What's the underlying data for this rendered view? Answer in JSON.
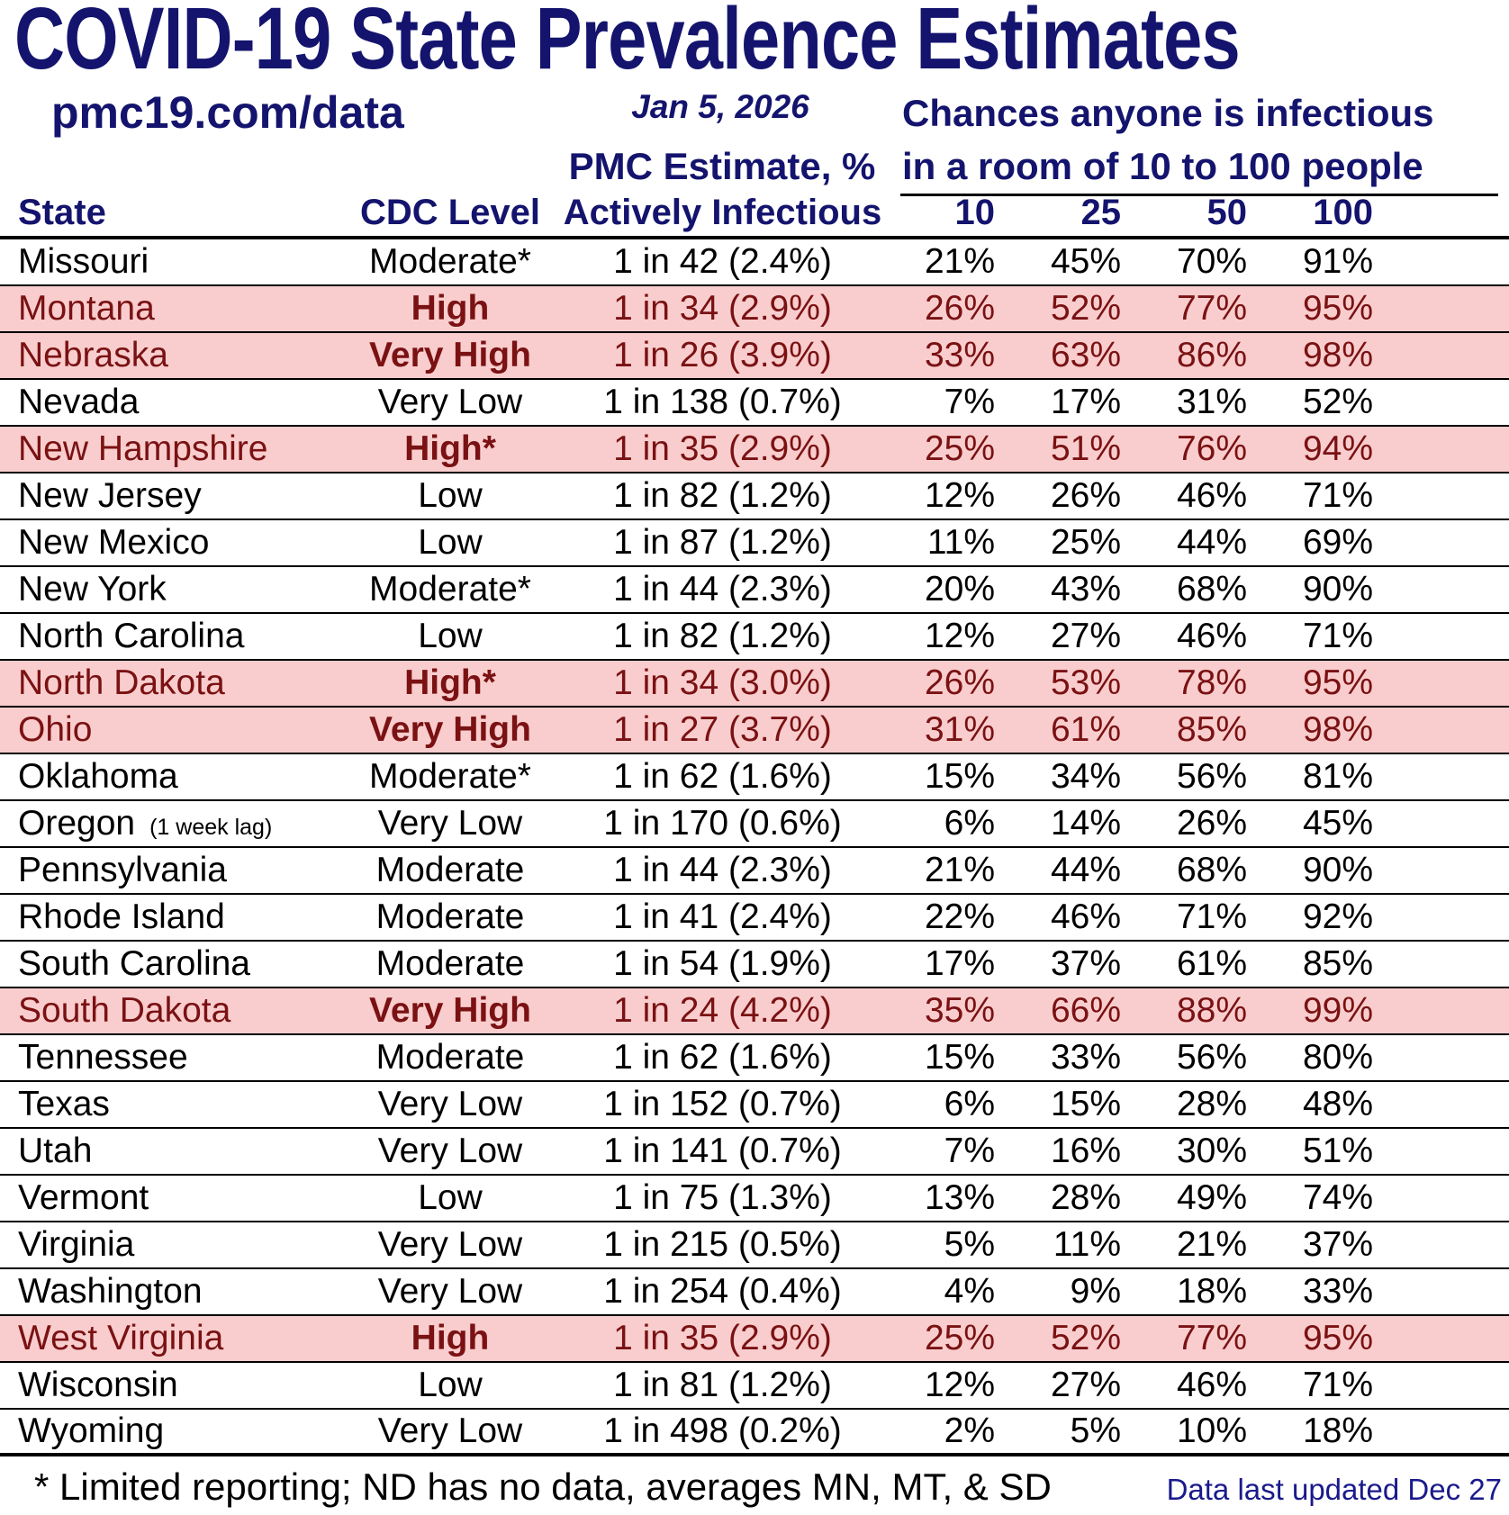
{
  "page": {
    "title": "COVID-19 State Prevalence Estimates",
    "site": "pmc19.com/data",
    "date": "Jan 5, 2026",
    "room_header_line1": "Chances anyone is infectious",
    "room_header_line2": "in a room of 10 to 100 people",
    "pmc_header_line1": "PMC Estimate, %",
    "pmc_header_line2": "Actively Infectious",
    "footnote": "* Limited reporting; ND has no data, averages MN, MT, & SD",
    "last_updated": "Data last updated Dec 27"
  },
  "columns": {
    "state": "State",
    "cdc_level": "CDC Level",
    "room_sizes": [
      "10",
      "25",
      "50",
      "100"
    ]
  },
  "colors": {
    "navy": "#14146e",
    "maroon": "#7a1113",
    "highlight_pink": "#f9cdcd",
    "updated_blue": "#1a1a8c",
    "row_line_black": "#000000"
  },
  "chart_data": {
    "type": "table",
    "title": "COVID-19 State Prevalence Estimates",
    "columns": [
      "State",
      "CDC Level",
      "PMC Estimate, % Actively Infectious",
      "10",
      "25",
      "50",
      "100"
    ],
    "rows": [
      {
        "state": "Missouri",
        "note": "",
        "cdc": "Moderate*",
        "estimate": "1 in 42 (2.4%)",
        "p10": "21%",
        "p25": "45%",
        "p50": "70%",
        "p100": "91%",
        "highlight": false
      },
      {
        "state": "Montana",
        "note": "",
        "cdc": "High",
        "estimate": "1 in 34 (2.9%)",
        "p10": "26%",
        "p25": "52%",
        "p50": "77%",
        "p100": "95%",
        "highlight": true
      },
      {
        "state": "Nebraska",
        "note": "",
        "cdc": "Very High",
        "estimate": "1 in 26 (3.9%)",
        "p10": "33%",
        "p25": "63%",
        "p50": "86%",
        "p100": "98%",
        "highlight": true
      },
      {
        "state": "Nevada",
        "note": "",
        "cdc": "Very Low",
        "estimate": "1 in 138 (0.7%)",
        "p10": "7%",
        "p25": "17%",
        "p50": "31%",
        "p100": "52%",
        "highlight": false
      },
      {
        "state": "New Hampshire",
        "note": "",
        "cdc": "High*",
        "estimate": "1 in 35 (2.9%)",
        "p10": "25%",
        "p25": "51%",
        "p50": "76%",
        "p100": "94%",
        "highlight": true
      },
      {
        "state": "New Jersey",
        "note": "",
        "cdc": "Low",
        "estimate": "1 in 82 (1.2%)",
        "p10": "12%",
        "p25": "26%",
        "p50": "46%",
        "p100": "71%",
        "highlight": false
      },
      {
        "state": "New Mexico",
        "note": "",
        "cdc": "Low",
        "estimate": "1 in 87 (1.2%)",
        "p10": "11%",
        "p25": "25%",
        "p50": "44%",
        "p100": "69%",
        "highlight": false
      },
      {
        "state": "New York",
        "note": "",
        "cdc": "Moderate*",
        "estimate": "1 in 44 (2.3%)",
        "p10": "20%",
        "p25": "43%",
        "p50": "68%",
        "p100": "90%",
        "highlight": false
      },
      {
        "state": "North Carolina",
        "note": "",
        "cdc": "Low",
        "estimate": "1 in 82 (1.2%)",
        "p10": "12%",
        "p25": "27%",
        "p50": "46%",
        "p100": "71%",
        "highlight": false
      },
      {
        "state": "North Dakota",
        "note": "",
        "cdc": "High*",
        "estimate": "1 in 34 (3.0%)",
        "p10": "26%",
        "p25": "53%",
        "p50": "78%",
        "p100": "95%",
        "highlight": true
      },
      {
        "state": "Ohio",
        "note": "",
        "cdc": "Very High",
        "estimate": "1 in 27 (3.7%)",
        "p10": "31%",
        "p25": "61%",
        "p50": "85%",
        "p100": "98%",
        "highlight": true
      },
      {
        "state": "Oklahoma",
        "note": "",
        "cdc": "Moderate*",
        "estimate": "1 in 62 (1.6%)",
        "p10": "15%",
        "p25": "34%",
        "p50": "56%",
        "p100": "81%",
        "highlight": false
      },
      {
        "state": "Oregon",
        "note": "(1 week lag)",
        "cdc": "Very Low",
        "estimate": "1 in 170 (0.6%)",
        "p10": "6%",
        "p25": "14%",
        "p50": "26%",
        "p100": "45%",
        "highlight": false
      },
      {
        "state": "Pennsylvania",
        "note": "",
        "cdc": "Moderate",
        "estimate": "1 in 44 (2.3%)",
        "p10": "21%",
        "p25": "44%",
        "p50": "68%",
        "p100": "90%",
        "highlight": false
      },
      {
        "state": "Rhode Island",
        "note": "",
        "cdc": "Moderate",
        "estimate": "1 in 41 (2.4%)",
        "p10": "22%",
        "p25": "46%",
        "p50": "71%",
        "p100": "92%",
        "highlight": false
      },
      {
        "state": "South Carolina",
        "note": "",
        "cdc": "Moderate",
        "estimate": "1 in 54 (1.9%)",
        "p10": "17%",
        "p25": "37%",
        "p50": "61%",
        "p100": "85%",
        "highlight": false
      },
      {
        "state": "South Dakota",
        "note": "",
        "cdc": "Very High",
        "estimate": "1 in 24 (4.2%)",
        "p10": "35%",
        "p25": "66%",
        "p50": "88%",
        "p100": "99%",
        "highlight": true
      },
      {
        "state": "Tennessee",
        "note": "",
        "cdc": "Moderate",
        "estimate": "1 in 62 (1.6%)",
        "p10": "15%",
        "p25": "33%",
        "p50": "56%",
        "p100": "80%",
        "highlight": false
      },
      {
        "state": "Texas",
        "note": "",
        "cdc": "Very Low",
        "estimate": "1 in 152 (0.7%)",
        "p10": "6%",
        "p25": "15%",
        "p50": "28%",
        "p100": "48%",
        "highlight": false
      },
      {
        "state": "Utah",
        "note": "",
        "cdc": "Very Low",
        "estimate": "1 in 141 (0.7%)",
        "p10": "7%",
        "p25": "16%",
        "p50": "30%",
        "p100": "51%",
        "highlight": false
      },
      {
        "state": "Vermont",
        "note": "",
        "cdc": "Low",
        "estimate": "1 in 75 (1.3%)",
        "p10": "13%",
        "p25": "28%",
        "p50": "49%",
        "p100": "74%",
        "highlight": false
      },
      {
        "state": "Virginia",
        "note": "",
        "cdc": "Very Low",
        "estimate": "1 in 215 (0.5%)",
        "p10": "5%",
        "p25": "11%",
        "p50": "21%",
        "p100": "37%",
        "highlight": false
      },
      {
        "state": "Washington",
        "note": "",
        "cdc": "Very Low",
        "estimate": "1 in 254 (0.4%)",
        "p10": "4%",
        "p25": "9%",
        "p50": "18%",
        "p100": "33%",
        "highlight": false
      },
      {
        "state": "West Virginia",
        "note": "",
        "cdc": "High",
        "estimate": "1 in 35 (2.9%)",
        "p10": "25%",
        "p25": "52%",
        "p50": "77%",
        "p100": "95%",
        "highlight": true
      },
      {
        "state": "Wisconsin",
        "note": "",
        "cdc": "Low",
        "estimate": "1 in 81 (1.2%)",
        "p10": "12%",
        "p25": "27%",
        "p50": "46%",
        "p100": "71%",
        "highlight": false
      },
      {
        "state": "Wyoming",
        "note": "",
        "cdc": "Very Low",
        "estimate": "1 in 498 (0.2%)",
        "p10": "2%",
        "p25": "5%",
        "p50": "10%",
        "p100": "18%",
        "highlight": false
      }
    ]
  }
}
